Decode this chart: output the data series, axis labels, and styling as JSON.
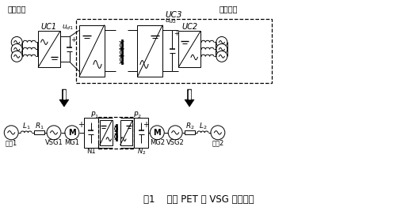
{
  "title": "图1    传统 PET 的 VSG 控制模型",
  "bg_color": "#ffffff",
  "line_color": "#000000",
  "figsize": [
    5.02,
    2.67
  ],
  "dpi": 100,
  "labels": {
    "gaoya": "高压电网",
    "diya": "低压电网",
    "UC1": "UC1",
    "UC2": "UC2",
    "UC3": "UC3",
    "ud1": "$u_{d1}$",
    "ud2": "$u_{d2}$",
    "L1": "$L_{1}$",
    "R1": "$R_{1}$",
    "R2": "$R_{2}$",
    "L2": "$L_{2}$",
    "VSG1": "VSG1",
    "VSG2": "VSG2",
    "MG1": "MG1",
    "MG2": "MG2",
    "N1": "N1",
    "N2": "$N_{2}$",
    "P1": "$P_{1}$",
    "P2": "$P_{2}$",
    "dianwang1": "电网1",
    "dianwang2": "电网2",
    "M": "M"
  }
}
